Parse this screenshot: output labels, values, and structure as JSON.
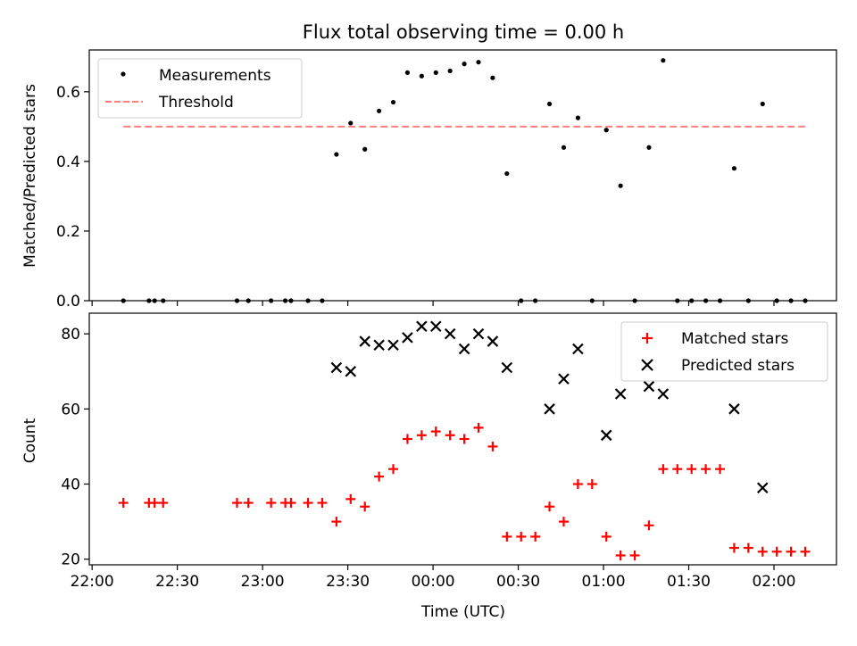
{
  "chart_data": [
    {
      "type": "scatter",
      "title": "Flux total observing time = 0.00 h",
      "xlabel": "",
      "ylabel": "Matched/Predicted stars",
      "ylim": [
        0,
        0.72
      ],
      "yticks": [
        "0.0",
        "0.2",
        "0.4",
        "0.6"
      ],
      "ytick_values": [
        0,
        0.2,
        0.4,
        0.6
      ],
      "legend_position": "top-left",
      "series": [
        {
          "name": "Measurements",
          "marker": "dot",
          "color": "#000000",
          "x": [
            "22:11",
            "22:20",
            "22:22",
            "22:25",
            "22:51",
            "22:55",
            "23:03",
            "23:08",
            "23:10",
            "23:16",
            "23:21",
            "23:26",
            "23:31",
            "23:36",
            "23:41",
            "23:46",
            "23:51",
            "23:56",
            "24:01",
            "24:06",
            "24:11",
            "24:16",
            "24:21",
            "24:26",
            "24:31",
            "24:36",
            "24:41",
            "24:46",
            "24:51",
            "24:56",
            "25:01",
            "25:06",
            "25:11",
            "25:16",
            "25:21",
            "25:26",
            "25:31",
            "25:36",
            "25:41",
            "25:46",
            "25:51",
            "25:56",
            "26:01",
            "26:06",
            "26:11"
          ],
          "y": [
            0,
            0,
            0,
            0,
            0,
            0,
            0,
            0,
            0,
            0,
            0,
            0.42,
            0.51,
            0.435,
            0.545,
            0.57,
            0.655,
            0.645,
            0.655,
            0.66,
            0.68,
            0.685,
            0.64,
            0.365,
            0,
            0,
            0.565,
            0.44,
            0.525,
            0,
            0.49,
            0.33,
            0,
            0.44,
            0.69,
            0,
            0,
            0,
            0,
            0.38,
            0,
            0.565,
            0,
            0,
            0
          ]
        },
        {
          "name": "Threshold",
          "marker": "dashed-line",
          "color": "#ff7f7f",
          "x": [
            "22:11",
            "26:11"
          ],
          "y": [
            0.5,
            0.5
          ]
        }
      ]
    },
    {
      "type": "scatter",
      "title": "",
      "xlabel": "Time (UTC)",
      "ylabel": "Count",
      "ylim": [
        18.5,
        85.5
      ],
      "yticks": [
        "20",
        "40",
        "60",
        "80"
      ],
      "ytick_values": [
        20,
        40,
        60,
        80
      ],
      "xticks": [
        "22:00",
        "22:30",
        "23:00",
        "23:30",
        "00:00",
        "00:30",
        "01:00",
        "01:30",
        "02:00"
      ],
      "xtick_minutes": [
        0,
        30,
        60,
        90,
        120,
        150,
        180,
        210,
        240
      ],
      "xlim_minutes": [
        -1,
        262
      ],
      "x_origin": "22:00",
      "legend_position": "top-right",
      "series": [
        {
          "name": "Matched stars",
          "marker": "plus",
          "color": "#ff0000",
          "x": [
            "22:11",
            "22:20",
            "22:22",
            "22:25",
            "22:51",
            "22:55",
            "23:03",
            "23:08",
            "23:10",
            "23:16",
            "23:21",
            "23:26",
            "23:31",
            "23:36",
            "23:41",
            "23:46",
            "23:51",
            "23:56",
            "24:01",
            "24:06",
            "24:11",
            "24:16",
            "24:21",
            "24:26",
            "24:31",
            "24:36",
            "24:41",
            "24:46",
            "24:51",
            "24:56",
            "25:01",
            "25:06",
            "25:11",
            "25:16",
            "25:21",
            "25:26",
            "25:31",
            "25:36",
            "25:41",
            "25:46",
            "25:51",
            "25:56",
            "26:01",
            "26:06",
            "26:11"
          ],
          "y": [
            35,
            35,
            35,
            35,
            35,
            35,
            35,
            35,
            35,
            35,
            35,
            30,
            36,
            34,
            42,
            44,
            52,
            53,
            54,
            53,
            52,
            55,
            50,
            26,
            26,
            26,
            34,
            30,
            40,
            40,
            26,
            21,
            21,
            29,
            44,
            44,
            44,
            44,
            44,
            23,
            23,
            22,
            22,
            22,
            22
          ]
        },
        {
          "name": "Predicted stars",
          "marker": "x",
          "color": "#000000",
          "x": [
            "23:26",
            "23:31",
            "23:36",
            "23:41",
            "23:46",
            "23:51",
            "23:56",
            "24:01",
            "24:06",
            "24:11",
            "24:16",
            "24:21",
            "24:26",
            "24:41",
            "24:46",
            "24:51",
            "25:01",
            "25:06",
            "25:16",
            "25:21",
            "25:46",
            "25:56"
          ],
          "y": [
            71,
            70,
            78,
            77,
            77,
            79,
            82,
            82,
            80,
            76,
            80,
            78,
            71,
            60,
            68,
            76,
            53,
            64,
            66,
            64,
            60,
            39
          ]
        }
      ]
    }
  ]
}
